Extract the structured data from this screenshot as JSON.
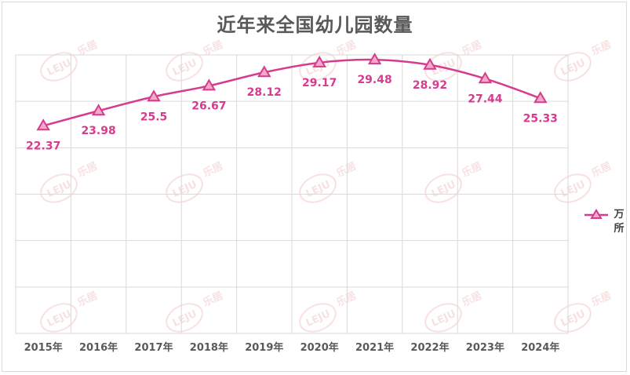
{
  "chart_data": {
    "type": "line",
    "title": "近年来全国幼儿园数量",
    "categories": [
      "2015年",
      "2016年",
      "2017年",
      "2018年",
      "2019年",
      "2020年",
      "2021年",
      "2022年",
      "2023年",
      "2024年"
    ],
    "series": [
      {
        "name": "万所",
        "values": [
          22.37,
          23.98,
          25.5,
          26.67,
          28.12,
          29.17,
          29.48,
          28.92,
          27.44,
          25.33
        ],
        "labels": [
          "22.37",
          "23.98",
          "25.5",
          "26.67",
          "28.12",
          "29.17",
          "29.48",
          "28.92",
          "27.44",
          "25.33"
        ],
        "color": "#d63c8e",
        "marker": "triangle"
      }
    ],
    "ylim": [
      0,
      30
    ],
    "grid": true,
    "legend_position": "right",
    "y_tick_labels_visible": false
  },
  "watermark": {
    "text": "乐居",
    "color": "#f2c9c9"
  }
}
